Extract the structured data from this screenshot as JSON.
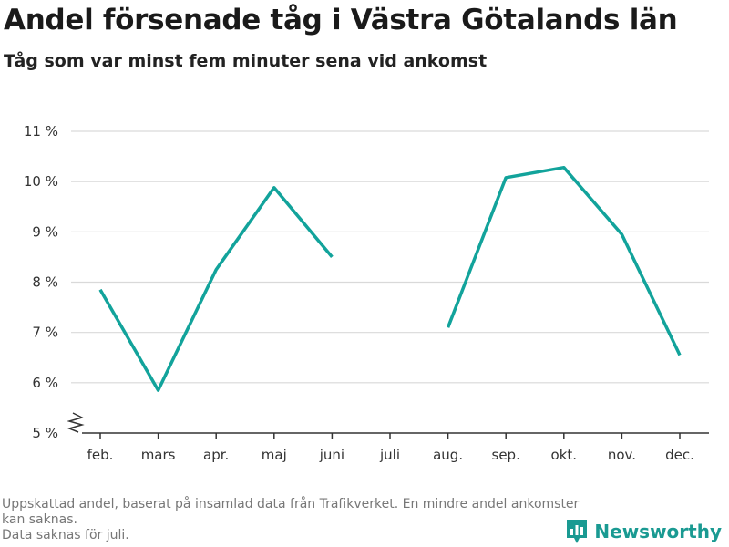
{
  "header": {
    "title": "Andel försenade tåg i Västra Götalands län",
    "subtitle": "Tåg som var minst fem minuter sena vid ankomst"
  },
  "footer": {
    "note": "Uppskattad andel, baserat på insamlad data från Trafikverket. En mindre andel ankomster kan saknas.",
    "missing": "Data saknas för juli."
  },
  "brand": {
    "name": "Newsworthy",
    "icon": "newsworthy-logo-icon"
  },
  "colors": {
    "line": "#12a39b",
    "grid": "#d9d9d9",
    "axis": "#333333",
    "brand": "#1a9a92"
  },
  "chart_data": {
    "type": "line",
    "title": "Andel försenade tåg i Västra Götalands län",
    "subtitle": "Tåg som var minst fem minuter sena vid ankomst",
    "categories": [
      "feb.",
      "mars",
      "apr.",
      "maj",
      "juni",
      "juli",
      "aug.",
      "sep.",
      "okt.",
      "nov.",
      "dec."
    ],
    "series": [
      {
        "values": [
          7.85,
          5.85,
          8.25,
          9.88,
          8.5,
          null,
          7.1,
          10.08,
          10.28,
          8.95,
          6.55
        ]
      }
    ],
    "ylim": [
      5,
      11
    ],
    "yticks": [
      5,
      6,
      7,
      8,
      9,
      10,
      11
    ],
    "ytick_labels": [
      "5 %",
      "6 %",
      "7 %",
      "8 %",
      "9 %",
      "10 %",
      "11 %"
    ],
    "axis_break": true,
    "grid": true,
    "xlabel": "",
    "ylabel": ""
  }
}
